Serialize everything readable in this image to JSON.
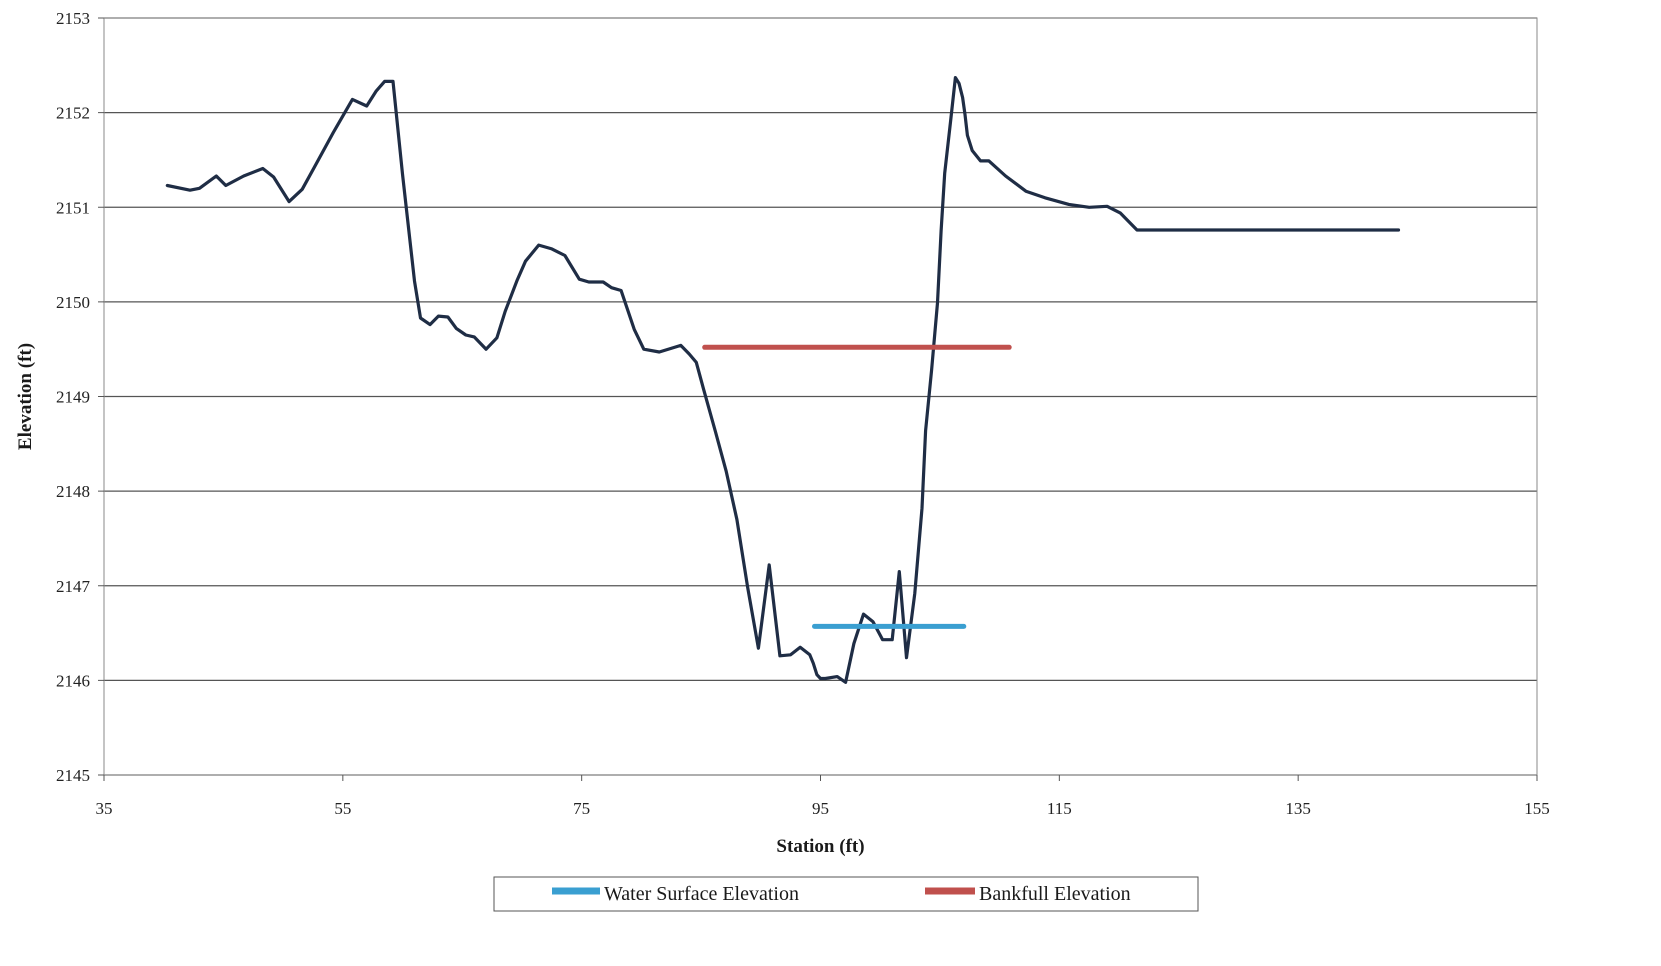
{
  "chart_data": {
    "type": "line",
    "title": "",
    "xlabel": "Station (ft)",
    "ylabel": "Elevation (ft)",
    "xlim": [
      35,
      155
    ],
    "ylim": [
      2145,
      2153
    ],
    "xticks": [
      35,
      55,
      75,
      95,
      115,
      135,
      155
    ],
    "yticks": [
      2145,
      2146,
      2147,
      2148,
      2149,
      2150,
      2151,
      2152,
      2153
    ],
    "grid": "horizontal",
    "legend_position": "bottom",
    "series": [
      {
        "color": "#1f2d45",
        "x": [
          40.3,
          42.2,
          43.0,
          44.4,
          45.2,
          46.7,
          48.3,
          49.2,
          50.5,
          51.6,
          52.6,
          54.2,
          55.8,
          57.0,
          57.8,
          58.5,
          59.2,
          60.0,
          61.0,
          61.5,
          62.3,
          63.0,
          63.8,
          64.5,
          65.3,
          66.0,
          67.0,
          67.9,
          68.6,
          69.6,
          70.3,
          71.4,
          72.5,
          73.6,
          74.8,
          75.6,
          76.8,
          77.5,
          78.3,
          79.4,
          80.2,
          81.5,
          83.3,
          84.0,
          84.6,
          85.2,
          86.2,
          87.1,
          88.0,
          88.9,
          89.8,
          90.7,
          91.6,
          92.5,
          93.3,
          94.1,
          94.4,
          94.7,
          95.0,
          95.4,
          96.4,
          97.1,
          97.8,
          98.6,
          99.4,
          100.2,
          101.0,
          101.6,
          102.2,
          102.9,
          103.5,
          103.8,
          104.3,
          104.8,
          105.1,
          105.4,
          105.9,
          106.3,
          106.6,
          106.9,
          107.1,
          107.3,
          107.7,
          108.4,
          109.1,
          110.5,
          112.2,
          113.8,
          115.8,
          117.5,
          119.0,
          120.1,
          121.5,
          122.7,
          124.5,
          126.7,
          128.5,
          129.9,
          131.6,
          133.5,
          135.1,
          137.2,
          139.0,
          140.5,
          141.8,
          142.5,
          142.9,
          143.4
        ],
        "y": [
          2151.23,
          2151.18,
          2151.2,
          2151.33,
          2151.23,
          2151.33,
          2151.41,
          2151.32,
          2151.06,
          2151.19,
          2151.42,
          2151.79,
          2152.14,
          2152.07,
          2152.23,
          2152.33,
          2152.33,
          2151.35,
          2150.22,
          2149.83,
          2149.76,
          2149.85,
          2149.84,
          2149.72,
          2149.65,
          2149.63,
          2149.5,
          2149.62,
          2149.9,
          2150.23,
          2150.43,
          2150.6,
          2150.56,
          2150.49,
          2150.24,
          2150.21,
          2150.21,
          2150.15,
          2150.12,
          2149.71,
          2149.5,
          2149.47,
          2149.54,
          2149.45,
          2149.36,
          2149.08,
          2148.63,
          2148.21,
          2147.7,
          2146.98,
          2146.34,
          2147.22,
          2146.26,
          2146.27,
          2146.35,
          2146.27,
          2146.18,
          2146.06,
          2146.02,
          2146.02,
          2146.04,
          2145.98,
          2146.39,
          2146.7,
          2146.62,
          2146.43,
          2146.43,
          2147.15,
          2146.24,
          2146.92,
          2147.82,
          2148.64,
          2149.28,
          2149.99,
          2150.75,
          2151.36,
          2151.92,
          2152.37,
          2152.31,
          2152.16,
          2151.98,
          2151.76,
          2151.6,
          2151.49,
          2151.49,
          2151.33,
          2151.17,
          2151.1,
          2151.03,
          2151.0,
          2151.01,
          2150.94,
          2150.76,
          2150.76,
          2150.76,
          2150.76,
          2150.76,
          2150.76,
          2150.76,
          2150.76,
          2150.76,
          2150.76,
          2150.76,
          2150.76,
          2150.76,
          2150.76,
          2150.76,
          2150.76
        ]
      },
      {
        "name": "Water Surface Elevation",
        "color": "#3a9fd1",
        "x": [
          94.5,
          107.0
        ],
        "y": [
          2146.57,
          2146.57
        ]
      },
      {
        "name": "Bankfull Elevation",
        "color": "#c0504d",
        "x": [
          85.3,
          110.8
        ],
        "y": [
          2149.52,
          2149.52
        ]
      }
    ]
  }
}
